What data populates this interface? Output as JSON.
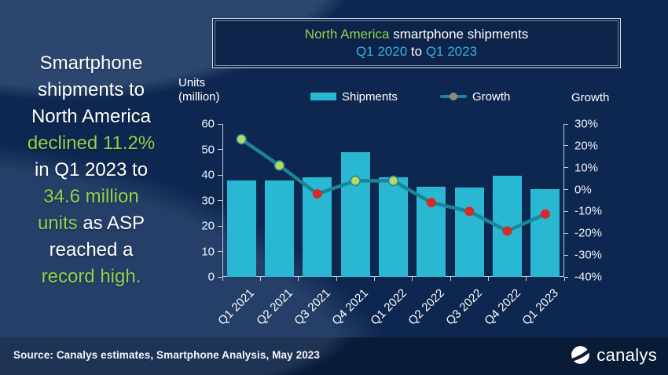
{
  "colors": {
    "background": "#0e2750",
    "footer_background": "#0a1b38",
    "white": "#ffffff",
    "green": "#92d050",
    "cyan": "#35b4dc",
    "bar": "#29b7d1",
    "line": "#1a8699",
    "dot_positive": "#b5d962",
    "dot_negative": "#d52a26",
    "legend_dot_gray": "#8e8a7e",
    "axis": "#b9cfe0",
    "tick_text": "#eef4fb"
  },
  "slide": {
    "headline_lines": [
      [
        {
          "t": "Smartphone",
          "c": "white"
        }
      ],
      [
        {
          "t": "shipments to",
          "c": "white"
        }
      ],
      [
        {
          "t": "North America",
          "c": "white"
        }
      ],
      [
        {
          "t": "declined 11.2%",
          "c": "green"
        }
      ],
      [
        {
          "t": "in Q1 2023 to",
          "c": "white"
        }
      ],
      [
        {
          "t": "34.6 million",
          "c": "green"
        }
      ],
      [
        {
          "t": "units",
          "c": "green"
        },
        {
          "t": " as ASP",
          "c": "white"
        }
      ],
      [
        {
          "t": "reached a",
          "c": "white"
        }
      ],
      [
        {
          "t": "record high.",
          "c": "green"
        }
      ]
    ],
    "title_lines": [
      [
        {
          "t": "North America",
          "c": "green"
        },
        {
          "t": " smartphone shipments",
          "c": "white"
        }
      ],
      [
        {
          "t": "Q1 2020",
          "c": "cyan"
        },
        {
          "t": " to ",
          "c": "white"
        },
        {
          "t": "Q1 2023",
          "c": "cyan"
        }
      ]
    ],
    "units_label": {
      "line1": "Units",
      "line2": "(million)"
    },
    "growth_axis_label": "Growth",
    "legend": {
      "shipments": "Shipments",
      "growth": "Growth"
    }
  },
  "footer": {
    "source": "Source: Canalys estimates, Smartphone Analysis, May 2023",
    "logo_text": "canalys"
  },
  "chart_data": {
    "type": "bar",
    "title": "North America smartphone shipments Q1 2020 to Q1 2023",
    "categories": [
      "Q1 2021",
      "Q2 2021",
      "Q3 2021",
      "Q4 2021",
      "Q1 2022",
      "Q2 2022",
      "Q3 2022",
      "Q4 2022",
      "Q1 2023"
    ],
    "series": [
      {
        "name": "Shipments",
        "type": "bar",
        "axis": "left",
        "unit": "million units",
        "values": [
          38,
          38,
          39,
          49,
          39,
          35.5,
          35,
          39.7,
          34.6
        ]
      },
      {
        "name": "Growth",
        "type": "line",
        "axis": "right",
        "unit": "% year-on-year",
        "values": [
          23,
          11,
          -2,
          4,
          4,
          -6,
          -10,
          -19,
          -11.2
        ]
      }
    ],
    "left_axis": {
      "label": "Units (million)",
      "min": 0,
      "max": 60,
      "step": 10,
      "ticks": [
        "60",
        "50",
        "40",
        "30",
        "20",
        "10",
        "0"
      ]
    },
    "right_axis": {
      "label": "Growth",
      "min": -40,
      "max": 30,
      "step": 10,
      "ticks": [
        "30%",
        "20%",
        "10%",
        "0%",
        "-10%",
        "-20%",
        "-30%",
        "-40%"
      ]
    },
    "legend_position": "top",
    "grid": false
  }
}
